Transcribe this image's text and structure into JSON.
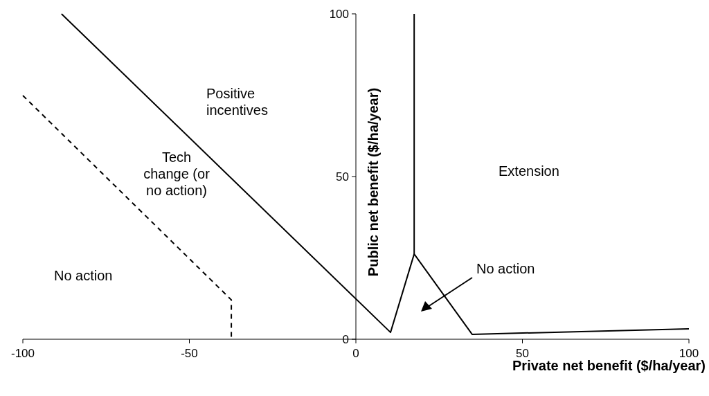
{
  "chart_data": {
    "type": "line",
    "xlabel": "Private net benefit ($/ha/year)",
    "ylabel": "Public net benefit ($/ha/year)",
    "xlim": [
      -100,
      100
    ],
    "ylim": [
      0,
      100
    ],
    "xticks": [
      -100,
      -50,
      0,
      50,
      100
    ],
    "yticks": [
      0,
      50,
      100
    ],
    "marker": "none",
    "series": [
      {
        "color": "#000000",
        "line_style": "solid",
        "x": [
          -88.4,
          10.4,
          17.5,
          34.9,
          100
        ],
        "values": [
          100,
          2.1,
          26.2,
          1.5,
          3.2
        ]
      },
      {
        "color": "#000000",
        "line_style": "solid",
        "x": [
          17.5,
          17.5
        ],
        "values": [
          26.2,
          100
        ]
      },
      {
        "color": "#000000",
        "line_style": "dashed",
        "x": [
          -100,
          -37.4,
          -37.4
        ],
        "values": [
          74.9,
          12.1,
          0
        ]
      }
    ],
    "annotations": [
      "Positive\nincentives",
      "Tech\nchange (or\nno action)",
      "No action",
      "Extension",
      "No action"
    ]
  }
}
